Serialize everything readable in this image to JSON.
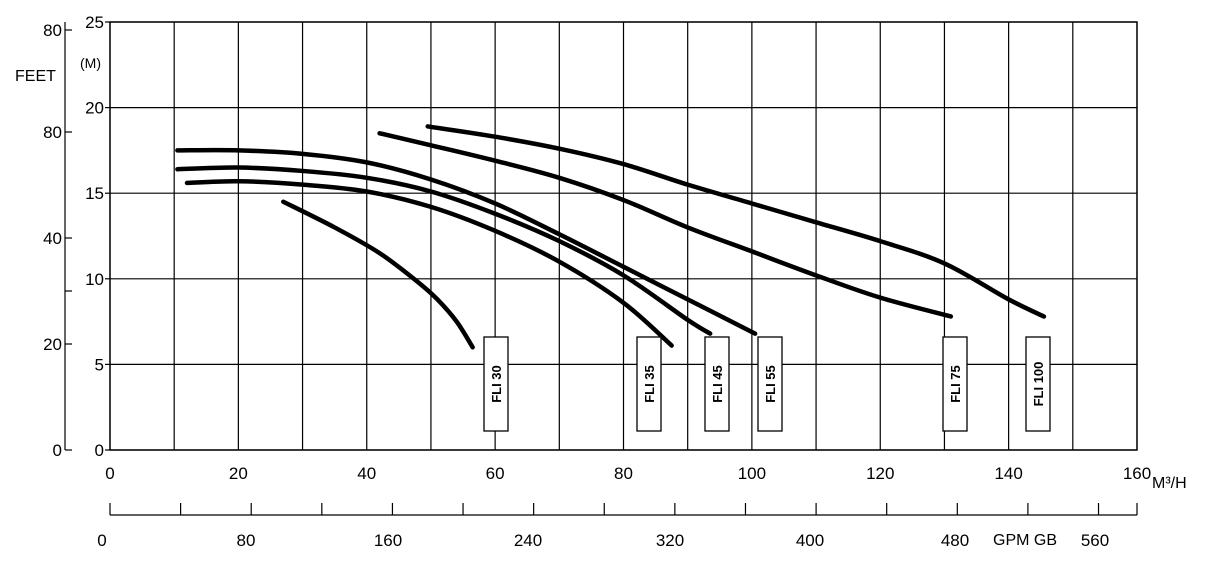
{
  "chart_data": {
    "type": "line",
    "title": "",
    "x_axis": {
      "unit_label": "M³/H",
      "range": [
        0,
        160
      ],
      "ticks": [
        "0",
        "20",
        "40",
        "60",
        "80",
        "100",
        "120",
        "140",
        "160"
      ],
      "gridlines_every": 10
    },
    "x2_axis": {
      "unit_label": "GPM GB",
      "ticks": [
        "0",
        "80",
        "160",
        "240",
        "320",
        "400",
        "480",
        "560"
      ]
    },
    "y_axis": {
      "unit_label": "(M)",
      "range": [
        0,
        25
      ],
      "ticks": [
        "0",
        "5",
        "10",
        "15",
        "20",
        "25"
      ]
    },
    "y_feet_axis": {
      "unit_label": "FEET",
      "ticks": [
        "0",
        "20",
        "40",
        "80",
        "80"
      ]
    },
    "grid": true,
    "series": [
      {
        "name": "FLI 30",
        "x": [
          27,
          35,
          42,
          48,
          51,
          54,
          56.5
        ],
        "y": [
          14.5,
          13.0,
          11.5,
          9.8,
          8.8,
          7.5,
          6.0
        ]
      },
      {
        "name": "FLI 35",
        "x": [
          12,
          20,
          30,
          40,
          50,
          60,
          70,
          80,
          87.5
        ],
        "y": [
          15.6,
          15.7,
          15.5,
          15.1,
          14.2,
          12.8,
          11.0,
          8.6,
          6.1
        ]
      },
      {
        "name": "FLI 45",
        "x": [
          10.5,
          20,
          30,
          40,
          50,
          60,
          70,
          80,
          90,
          93.5
        ],
        "y": [
          16.4,
          16.5,
          16.3,
          15.9,
          15.1,
          13.8,
          12.2,
          10.2,
          7.6,
          6.8
        ]
      },
      {
        "name": "FLI 55",
        "x": [
          10.5,
          20,
          30,
          40,
          50,
          60,
          70,
          80,
          90,
          100.5
        ],
        "y": [
          17.5,
          17.5,
          17.3,
          16.8,
          15.8,
          14.4,
          12.6,
          10.7,
          8.8,
          6.8
        ]
      },
      {
        "name": "FLI 75",
        "x": [
          42,
          50,
          60,
          70,
          80,
          90,
          100,
          110,
          120,
          131
        ],
        "y": [
          18.5,
          17.8,
          16.9,
          15.9,
          14.6,
          13.0,
          11.6,
          10.2,
          8.9,
          7.8
        ]
      },
      {
        "name": "FLI 100",
        "x": [
          49.5,
          60,
          70,
          80,
          90,
          100,
          110,
          120,
          130,
          140,
          145.5
        ],
        "y": [
          18.9,
          18.3,
          17.6,
          16.7,
          15.5,
          14.4,
          13.3,
          12.2,
          10.9,
          8.8,
          7.8
        ]
      }
    ],
    "model_labels": [
      "FLI 30",
      "FLI 35",
      "FLI 45",
      "FLI 55",
      "FLI 75",
      "FLI 100"
    ]
  },
  "colors": {
    "ink": "#000000",
    "background": "#ffffff"
  }
}
